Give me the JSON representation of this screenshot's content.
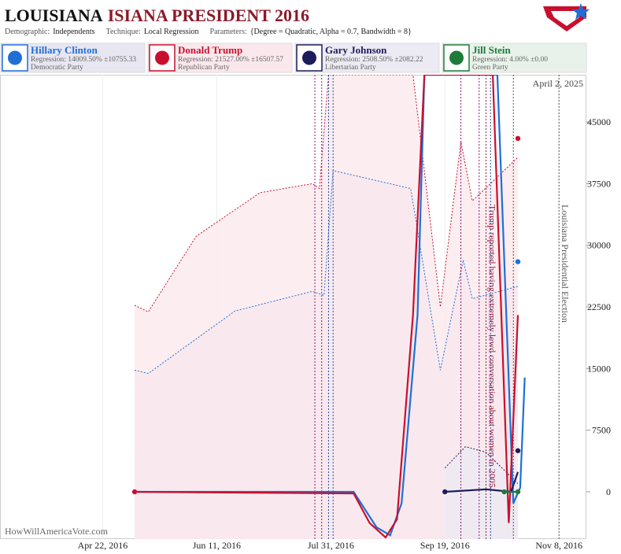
{
  "chart_data": {
    "type": "line",
    "title": "LOUISIANA",
    "title_suffix": "ISIANA PRESIDENT 2016",
    "subtitle": [
      {
        "label": "Demographic:",
        "value": "Independents"
      },
      {
        "label": "Technique:",
        "value": "Local Regression"
      },
      {
        "label": "Parameters:",
        "value": "{Degree = Quadratic, Alpha = 0.7, Bandwidth = 8}"
      }
    ],
    "date_label": "April 2, 2025",
    "watermark": "HowWillAmericaVote.com",
    "xlim": [
      "2016-03-08",
      "2016-11-20"
    ],
    "xticks": [
      {
        "value": "2016-04-22",
        "label": "Apr 22, 2016"
      },
      {
        "value": "2016-06-11",
        "label": "Jun 11, 2016"
      },
      {
        "value": "2016-07-31",
        "label": "Jul 31, 2016"
      },
      {
        "value": "2016-09-19",
        "label": "Sep 19, 2016"
      },
      {
        "value": "2016-11-08",
        "label": "Nov 8, 2016"
      }
    ],
    "ylim": [
      -5750,
      50750
    ],
    "yticks": [
      0,
      7500,
      15000,
      22500,
      30000,
      37500,
      45000
    ],
    "events": [
      {
        "x": "2016-07-24",
        "color": "#8b1a6b"
      },
      {
        "x": "2016-07-27",
        "color": "#8b1a6b"
      },
      {
        "x": "2016-07-30",
        "color": "#1f4fa8"
      },
      {
        "x": "2016-08-01",
        "color": "#1f4fa8"
      },
      {
        "x": "2016-09-26",
        "color": "#8b1a6b"
      },
      {
        "x": "2016-10-04",
        "color": "#8b1a6b"
      },
      {
        "x": "2016-10-09",
        "color": "#1f4fa8"
      },
      {
        "x": "2016-10-19",
        "color": "#555555"
      }
    ],
    "annotations": [
      {
        "x": "2016-10-07",
        "text": "Trump reported having extremely lewd conversation about women in 2005.",
        "color": "#9b1b3a"
      },
      {
        "x": "2016-11-08",
        "text": "Louisiana Presidential Election",
        "color": "#555555"
      }
    ],
    "series": [
      {
        "name": "Hillary Clinton",
        "color": "#1f6fd6",
        "fill": "#e8e6f0",
        "regression": "Regression: 14009.50% ±10755.33",
        "party": "Democratic Party",
        "x": [
          "2016-05-06",
          "2016-08-10",
          "2016-08-20",
          "2016-08-26",
          "2016-08-31",
          "2016-09-07",
          "2016-09-10",
          "2016-10-12",
          "2016-10-19",
          "2016-10-22",
          "2016-10-24"
        ],
        "values": [
          0,
          0,
          -4300,
          -5300,
          -1400,
          21500,
          50750,
          50750,
          -1400,
          500,
          13900
        ],
        "band": {
          "x": [
            "2016-05-06",
            "2016-05-12",
            "2016-06-19",
            "2016-07-23",
            "2016-07-28",
            "2016-08-01",
            "2016-09-04",
            "2016-09-17",
            "2016-09-27",
            "2016-10-01",
            "2016-10-21"
          ],
          "values": [
            14800,
            14400,
            22000,
            24400,
            23900,
            39100,
            36900,
            14800,
            28200,
            23500,
            25000
          ]
        },
        "points": {
          "x": [
            "2016-10-21"
          ],
          "values": [
            28000
          ]
        }
      },
      {
        "name": "Donald Trump",
        "color": "#c8102e",
        "fill": "#fbe8ec",
        "regression": "Regression: 21527.00% ±16507.57",
        "party": "Republican Party",
        "x": [
          "2016-05-06",
          "2016-08-10",
          "2016-08-17",
          "2016-08-24",
          "2016-08-29",
          "2016-09-05",
          "2016-09-10",
          "2016-10-10",
          "2016-10-17",
          "2016-10-21"
        ],
        "values": [
          0,
          -200,
          -3800,
          -5550,
          -3350,
          21500,
          50750,
          50750,
          -3800,
          21500
        ],
        "band": {
          "x": [
            "2016-05-06",
            "2016-05-12",
            "2016-06-02",
            "2016-06-30",
            "2016-07-23",
            "2016-07-26",
            "2016-07-30",
            "2016-09-05",
            "2016-09-17",
            "2016-09-26",
            "2016-10-01",
            "2016-10-21"
          ],
          "values": [
            22700,
            21900,
            31100,
            36400,
            37500,
            36900,
            50750,
            50750,
            22500,
            42600,
            35400,
            40700
          ]
        },
        "points": {
          "x": [
            "2016-05-06",
            "2016-10-21"
          ],
          "values": [
            0,
            43000
          ]
        }
      },
      {
        "name": "Gary Johnson",
        "color": "#1c1c5a",
        "fill": "#eceaf2",
        "regression": "Regression: 2508.50% ±2082.22",
        "party": "Libertarian Party",
        "x": [
          "2016-09-19",
          "2016-10-07",
          "2016-10-18",
          "2016-10-21"
        ],
        "values": [
          0,
          300,
          0,
          2400
        ],
        "band": {
          "x": [
            "2016-09-19",
            "2016-09-28",
            "2016-10-07",
            "2016-10-21"
          ],
          "values": [
            2900,
            5500,
            4800,
            1000
          ]
        },
        "points": {
          "x": [
            "2016-09-19",
            "2016-10-21"
          ],
          "values": [
            0,
            5000
          ]
        }
      },
      {
        "name": "Jill Stein",
        "color": "#1e7b3a",
        "fill": "#e8f2ea",
        "regression": "Regression: 4.00% ±0.00",
        "party": "Green Party",
        "x": [
          "2016-10-15",
          "2016-10-21"
        ],
        "values": [
          0,
          0
        ],
        "points": {
          "x": [
            "2016-10-15",
            "2016-10-21"
          ],
          "values": [
            0,
            0
          ]
        }
      }
    ]
  }
}
